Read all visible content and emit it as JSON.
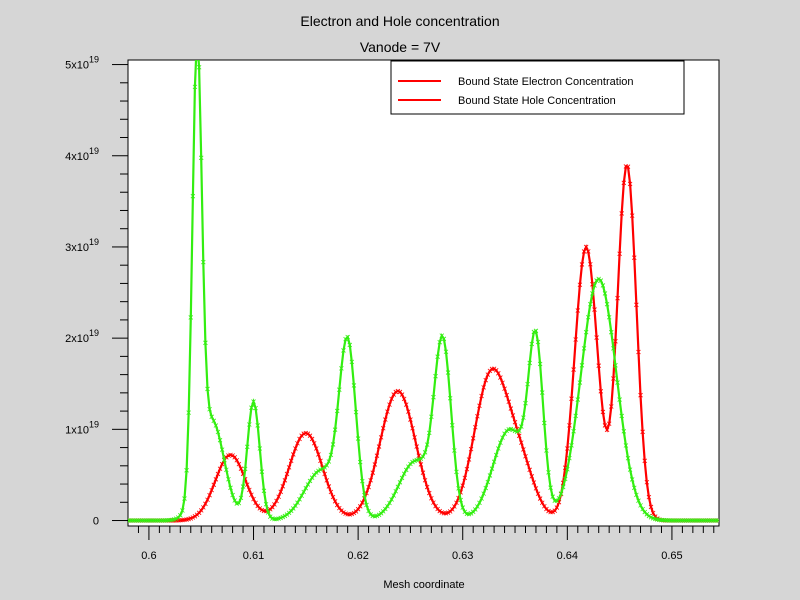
{
  "chart_data": {
    "type": "line",
    "title": "Electron and Hole concentration",
    "subtitle": "Vanode = 7V",
    "xlabel": "Mesh coordinate",
    "ylabel": "",
    "xlim": [
      0.598,
      0.6545
    ],
    "ylim": [
      -6e+17,
      5.05e+19
    ],
    "grid": false,
    "legend_position": "top-right",
    "x_ticks": [
      0.6,
      0.61,
      0.62,
      0.63,
      0.64,
      0.65
    ],
    "x_tick_labels": [
      "0.6",
      "0.61",
      "0.62",
      "0.63",
      "0.64",
      "0.65"
    ],
    "y_ticks": [
      0,
      1e+19,
      2e+19,
      3e+19,
      4e+19,
      5e+19
    ],
    "y_tick_labels": [
      {
        "mantissa": "0",
        "exp": ""
      },
      {
        "mantissa": "1x10",
        "exp": "19"
      },
      {
        "mantissa": "2x10",
        "exp": "19"
      },
      {
        "mantissa": "3x10",
        "exp": "19"
      },
      {
        "mantissa": "4x10",
        "exp": "19"
      },
      {
        "mantissa": "5x10",
        "exp": "19"
      }
    ],
    "series": [
      {
        "name": "Bound State Electron Concentration",
        "color": "#ff0000",
        "marker": "x",
        "peaks": [
          {
            "center": 0.6078,
            "amplitude": 7.2e+18,
            "sigma": 0.00145
          },
          {
            "center": 0.615,
            "amplitude": 9.6e+18,
            "sigma": 0.0016
          },
          {
            "center": 0.6238,
            "amplitude": 1.42e+19,
            "sigma": 0.0017
          },
          {
            "center": 0.6327,
            "amplitude": 1.58e+19,
            "sigma": 0.0016
          },
          {
            "center": 0.6355,
            "amplitude": 5.5e+18,
            "sigma": 0.0014
          },
          {
            "center": 0.6418,
            "amplitude": 3e+19,
            "sigma": 0.0011
          },
          {
            "center": 0.6457,
            "amplitude": 3.9e+19,
            "sigma": 0.0009
          }
        ]
      },
      {
        "name": "Bound State Hole Concentration",
        "color": "#33ee11",
        "marker": "x",
        "peaks": [
          {
            "center": 0.6046,
            "amplitude": 4.75e+19,
            "sigma": 0.00045
          },
          {
            "center": 0.606,
            "amplitude": 1.1e+19,
            "sigma": 0.0012
          },
          {
            "center": 0.61,
            "amplitude": 1.3e+19,
            "sigma": 0.0006
          },
          {
            "center": 0.619,
            "amplitude": 1.85e+19,
            "sigma": 0.0008
          },
          {
            "center": 0.6165,
            "amplitude": 5.5e+18,
            "sigma": 0.0016
          },
          {
            "center": 0.6281,
            "amplitude": 1.85e+19,
            "sigma": 0.0008
          },
          {
            "center": 0.6255,
            "amplitude": 6.5e+18,
            "sigma": 0.0016
          },
          {
            "center": 0.637,
            "amplitude": 1.78e+19,
            "sigma": 0.0007
          },
          {
            "center": 0.6345,
            "amplitude": 1e+19,
            "sigma": 0.0016
          },
          {
            "center": 0.643,
            "amplitude": 2.65e+19,
            "sigma": 0.0017
          }
        ]
      }
    ]
  }
}
